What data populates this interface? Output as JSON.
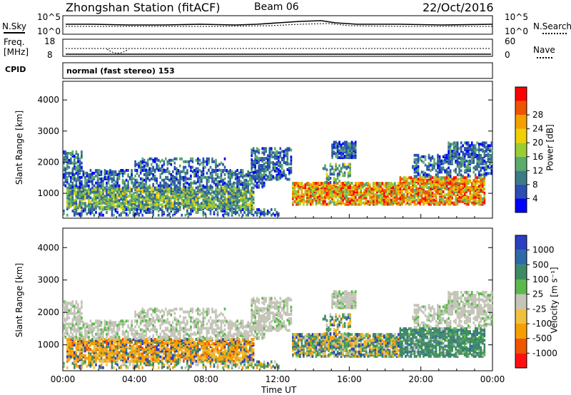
{
  "header": {
    "station_title": "Zhongshan Station (fitACF)",
    "beam": "Beam 06",
    "date": "22/Oct/2016"
  },
  "top_panel": {
    "left_label": "N.Sky",
    "right_label": "N.Search",
    "left_ticks": [
      "10^5",
      "10^0"
    ],
    "right_ticks": [
      "10^5",
      "10^0"
    ]
  },
  "freq_panel": {
    "left_label_1": "Freq.",
    "left_label_2": "[MHz]",
    "right_label": "Nave",
    "left_ticks": [
      "18",
      "8"
    ],
    "right_ticks": [
      "60",
      "0"
    ]
  },
  "cpid": {
    "label": "CPID",
    "mode_text": "normal (fast stereo) 153"
  },
  "chart_data": [
    {
      "type": "heatmap",
      "name": "Power",
      "ylabel": "Slant Range [km]",
      "yticks": [
        1000,
        2000,
        3000,
        4000
      ],
      "ylim": [
        200,
        4600
      ],
      "colorbar": {
        "label": "Power [dB]",
        "ticks": [
          "4",
          "8",
          "12",
          "16",
          "20",
          "24",
          "28"
        ],
        "colors": [
          "#0000ff",
          "#2a4fb0",
          "#3c7a86",
          "#5aab6c",
          "#9acd32",
          "#f0d000",
          "#f5a000",
          "#ee5500",
          "#ff0000"
        ]
      }
    },
    {
      "type": "heatmap",
      "name": "Velocity",
      "ylabel": "Slant Range [km]",
      "yticks": [
        1000,
        2000,
        3000,
        4000
      ],
      "ylim": [
        200,
        4600
      ],
      "xlabel": "Time UT",
      "xticks": [
        "00:00",
        "04:00",
        "08:00",
        "12:00",
        "16:00",
        "20:00",
        "00:00"
      ],
      "colorbar": {
        "label": "Velocity [m s⁻¹]",
        "ticks": [
          "1000",
          "500",
          "100",
          "25",
          "-25",
          "-100",
          "-500",
          "-1000"
        ],
        "colors": [
          "#2a3fc0",
          "#2f6aa8",
          "#3f8a64",
          "#5ab94a",
          "#c4c4b8",
          "#f0c040",
          "#f5a000",
          "#ee5500",
          "#ff1010"
        ]
      }
    }
  ],
  "colors": {
    "axis": "#000000",
    "background": "#ffffff",
    "gs_gray": "#c4c4b8"
  }
}
